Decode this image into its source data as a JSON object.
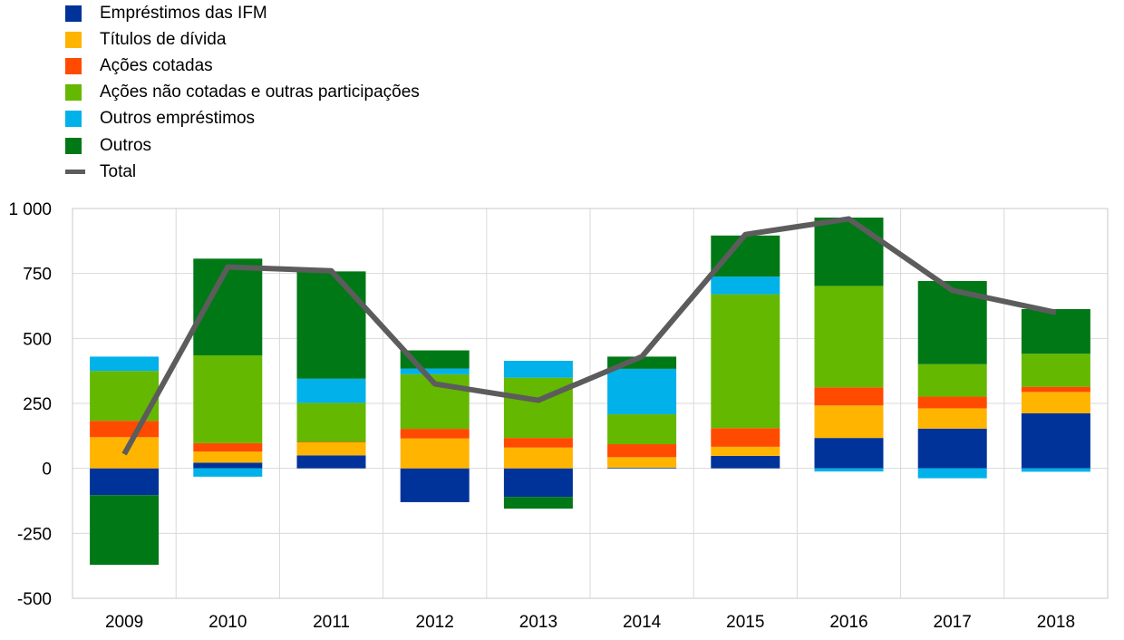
{
  "chart_data": {
    "type": "bar",
    "categories": [
      "2009",
      "2010",
      "2011",
      "2012",
      "2013",
      "2014",
      "2015",
      "2016",
      "2017",
      "2018"
    ],
    "ylim": [
      -500,
      1000
    ],
    "yticks": [
      {
        "value": 1000,
        "label": "1 000"
      },
      {
        "value": 750,
        "label": "750"
      },
      {
        "value": 500,
        "label": "500"
      },
      {
        "value": 250,
        "label": "250"
      },
      {
        "value": 0,
        "label": "0"
      },
      {
        "value": -250,
        "label": "-250"
      },
      {
        "value": -500,
        "label": "-500"
      }
    ],
    "grid": true,
    "legend_position": "top-left",
    "series": [
      {
        "name": "Empréstimos das IFM",
        "kind": "bar",
        "color": "#003399",
        "values": [
          -103,
          22,
          50,
          -130,
          -110,
          3,
          48,
          117,
          153,
          212
        ]
      },
      {
        "name": "Títulos de dívida",
        "kind": "bar",
        "color": "#FFB400",
        "values": [
          120,
          43,
          50,
          115,
          80,
          40,
          35,
          125,
          78,
          82
        ]
      },
      {
        "name": "Ações cotadas",
        "kind": "bar",
        "color": "#FF4B00",
        "values": [
          63,
          32,
          2,
          37,
          37,
          50,
          72,
          70,
          45,
          20
        ]
      },
      {
        "name": "Ações não cotadas e outras participações",
        "kind": "bar",
        "color": "#65B800",
        "values": [
          192,
          338,
          150,
          210,
          232,
          115,
          515,
          390,
          125,
          127
        ]
      },
      {
        "name": "Outros empréstimos",
        "kind": "bar",
        "color": "#00B1EA",
        "values": [
          55,
          -32,
          93,
          22,
          65,
          175,
          68,
          -12,
          -38,
          -13
        ]
      },
      {
        "name": "Outros",
        "kind": "bar",
        "color": "#007816",
        "values": [
          -268,
          372,
          413,
          70,
          -45,
          47,
          158,
          263,
          320,
          172
        ]
      },
      {
        "name": "Total",
        "kind": "line",
        "color": "#5C5C5C",
        "values": [
          55,
          775,
          760,
          325,
          262,
          430,
          900,
          960,
          685,
          600
        ]
      }
    ]
  }
}
